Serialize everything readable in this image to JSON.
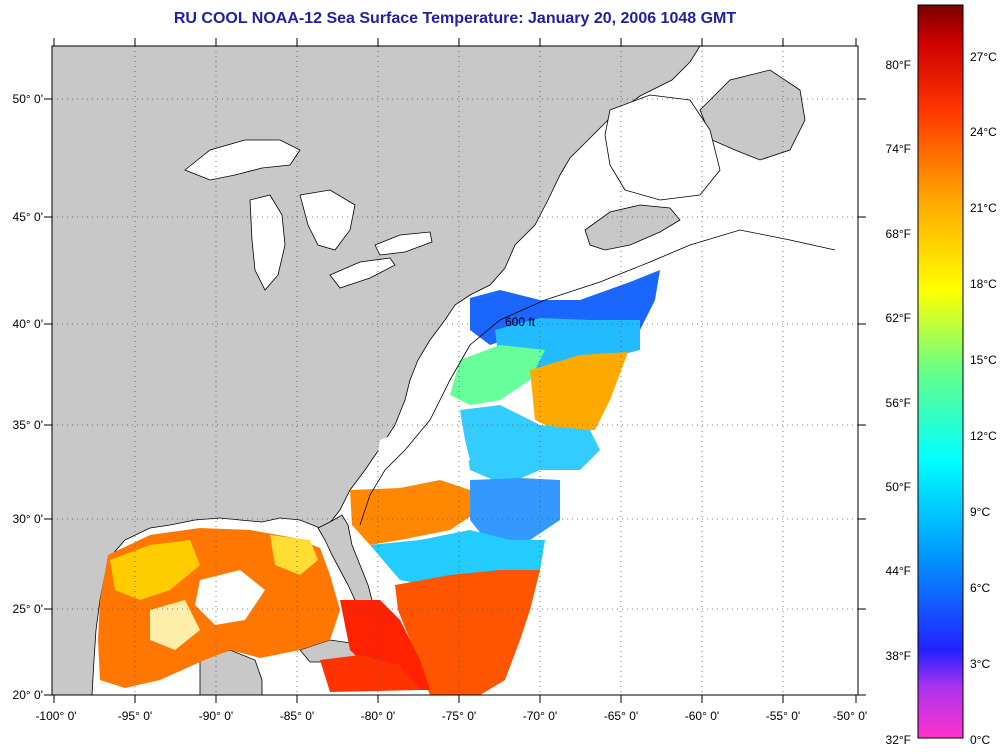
{
  "title": "RU COOL  NOAA-12  Sea Surface Temperature:  January 20, 2006 1048 GMT",
  "lat_labels": [
    "50° 0'",
    "45° 0'",
    "40° 0'",
    "35° 0'",
    "30° 0'",
    "25° 0'",
    "20° 0'"
  ],
  "lon_labels": [
    "-100° 0'",
    "-95° 0'",
    "-90° 0'",
    "-85° 0'",
    "-80° 0'",
    "-75° 0'",
    "-70° 0'",
    "-65° 0'",
    "-60° 0'",
    "-55° 0'",
    "-50° 0'"
  ],
  "contour_label": "600 ft",
  "colorbar": {
    "fahrenheit_labels": [
      "80°F",
      "74°F",
      "68°F",
      "62°F",
      "56°F",
      "50°F",
      "44°F",
      "38°F",
      "32°F"
    ],
    "celsius_labels": [
      "27°C",
      "24°C",
      "21°C",
      "18°C",
      "15°C",
      "12°C",
      "9°C",
      "6°C",
      "3°C",
      "0°C"
    ],
    "colors": [
      "#ff33cc",
      "#9933ff",
      "#0000ff",
      "#00aaff",
      "#00ffff",
      "#66ff99",
      "#ffff00",
      "#ffaa00",
      "#ff4400",
      "#cc0000",
      "#7a0000"
    ]
  },
  "colors": {
    "land": "#c8c8c8",
    "water_no_data": "#ffffff",
    "title": "#1e1ea6"
  }
}
